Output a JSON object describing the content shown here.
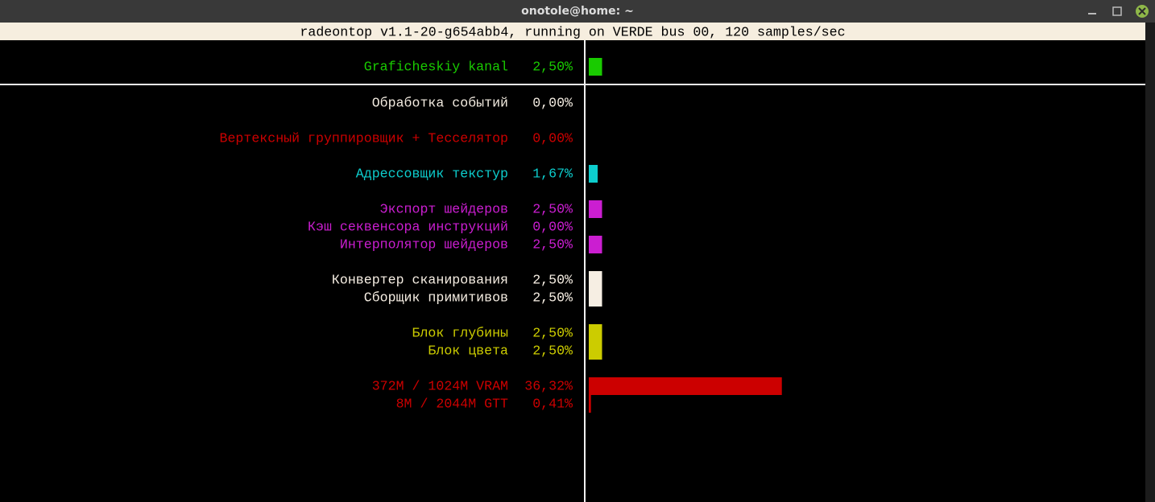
{
  "window": {
    "title": "onotole@home: ~"
  },
  "header": "radeontop v1.1-20-g654abb4, running on VERDE bus 00, 120 samples/sec",
  "rows": [
    {
      "label": "Graficheskiy kanal",
      "value": 2.5,
      "value_label": "2,50%",
      "color": "#19cb00"
    },
    {
      "label": "Обработка событий",
      "value": 0,
      "value_label": "0,00%",
      "color": "#f2ebe0"
    },
    {
      "label": "Вертексный группировщик + Тесселятор",
      "value": 0,
      "value_label": "0,00%",
      "color": "#cc0000"
    },
    {
      "label": "Адрессовщик текстур",
      "value": 1.67,
      "value_label": "1,67%",
      "color": "#0dcdcd"
    },
    {
      "label": "Экспорт шейдеров",
      "value": 2.5,
      "value_label": "2,50%",
      "color": "#cb1ed1"
    },
    {
      "label": "Кэш секвенсора инструкций",
      "value": 0,
      "value_label": "0,00%",
      "color": "#cb1ed1"
    },
    {
      "label": "Интерполятор шейдеров",
      "value": 2.5,
      "value_label": "2,50%",
      "color": "#cb1ed1"
    },
    {
      "label": "Конвертер сканирования",
      "value": 2.5,
      "value_label": "2,50%",
      "color": "#f6eee3"
    },
    {
      "label": "Сборщик примитивов",
      "value": 2.5,
      "value_label": "2,50%",
      "color": "#f6eee3"
    },
    {
      "label": "Блок глубины",
      "value": 2.5,
      "value_label": "2,50%",
      "color": "#cccc00"
    },
    {
      "label": "Блок цвета",
      "value": 2.5,
      "value_label": "2,50%",
      "color": "#cccc00"
    },
    {
      "label": "372M / 1024M VRAM",
      "value": 36.32,
      "value_label": "36,32%",
      "color": "#cc0000"
    },
    {
      "label": "8M / 2044M GTT",
      "value": 0.41,
      "value_label": "0,41%",
      "color": "#cc0000"
    }
  ]
}
